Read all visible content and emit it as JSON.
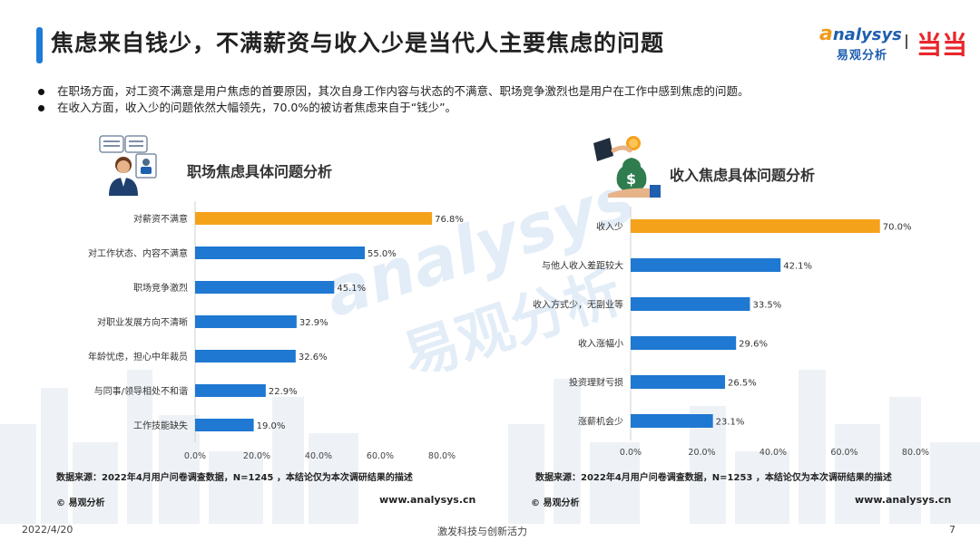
{
  "header": {
    "title": "焦虑来自钱少，不满薪资与收入少是当代人主要焦虑的问题",
    "logo_brand_prefix": "a",
    "logo_brand_rest": "nalysys",
    "logo_cn": "易观分析",
    "partner_logo": "当当"
  },
  "bullets": [
    "在职场方面，对工资不满意是用户焦虑的首要原因，其次自身工作内容与状态的不满意、职场竞争激烈也是用户在工作中感到焦虑的问题。",
    "在收入方面，收入少的问题依然大幅领先，70.0%的被访者焦虑来自于“钱少”。"
  ],
  "watermark": {
    "en": "analysys",
    "cn": "易观分析"
  },
  "colors": {
    "highlight": "#f5a21b",
    "bar": "#1f78d1",
    "title_accent": "#1f7bd8"
  },
  "icons": [
    "office-worker-icon",
    "money-bag-icon"
  ],
  "chart_data": [
    {
      "type": "bar",
      "orientation": "horizontal",
      "title": "职场焦虑具体问题分析",
      "categories": [
        "对薪资不满意",
        "对工作状态、内容不满意",
        "职场竞争激烈",
        "对职业发展方向不清晰",
        "年龄忧虑，担心中年裁员",
        "与同事/领导相处不和谐",
        "工作技能缺失"
      ],
      "values": [
        76.8,
        55.0,
        45.1,
        32.9,
        32.6,
        22.9,
        19.0
      ],
      "value_labels": [
        "76.8%",
        "55.0%",
        "45.1%",
        "32.9%",
        "32.6%",
        "22.9%",
        "19.0%"
      ],
      "xlim": [
        0,
        80
      ],
      "ticks": [
        "0.0%",
        "20.0%",
        "40.0%",
        "60.0%",
        "80.0%"
      ],
      "highlight_index": 0,
      "source": "数据来源：2022年4月用户问卷调查数据，N=1245 ，本结论仅为本次调研结果的描述"
    },
    {
      "type": "bar",
      "orientation": "horizontal",
      "title": "收入焦虑具体问题分析",
      "categories": [
        "收入少",
        "与他人收入差距较大",
        "收入方式少，无副业等",
        "收入涨幅小",
        "投资理财亏损",
        "涨薪机会少"
      ],
      "values": [
        70.0,
        42.1,
        33.5,
        29.6,
        26.5,
        23.1
      ],
      "value_labels": [
        "70.0%",
        "42.1%",
        "33.5%",
        "29.6%",
        "26.5%",
        "23.1%"
      ],
      "xlim": [
        0,
        80
      ],
      "ticks": [
        "0.0%",
        "20.0%",
        "40.0%",
        "60.0%",
        "80.0%"
      ],
      "highlight_index": 0,
      "source": "数据来源：2022年4月用户问卷调查数据，N=1253 ，本结论仅为本次调研结果的描述"
    }
  ],
  "footer": {
    "copyright_left": "© 易观分析",
    "url_left": "www.analysys.cn",
    "copyright_right": "© 易观分析",
    "url_right": "www.analysys.cn",
    "date": "2022/4/20",
    "slogan": "激发科技与创新活力",
    "page": "7"
  }
}
